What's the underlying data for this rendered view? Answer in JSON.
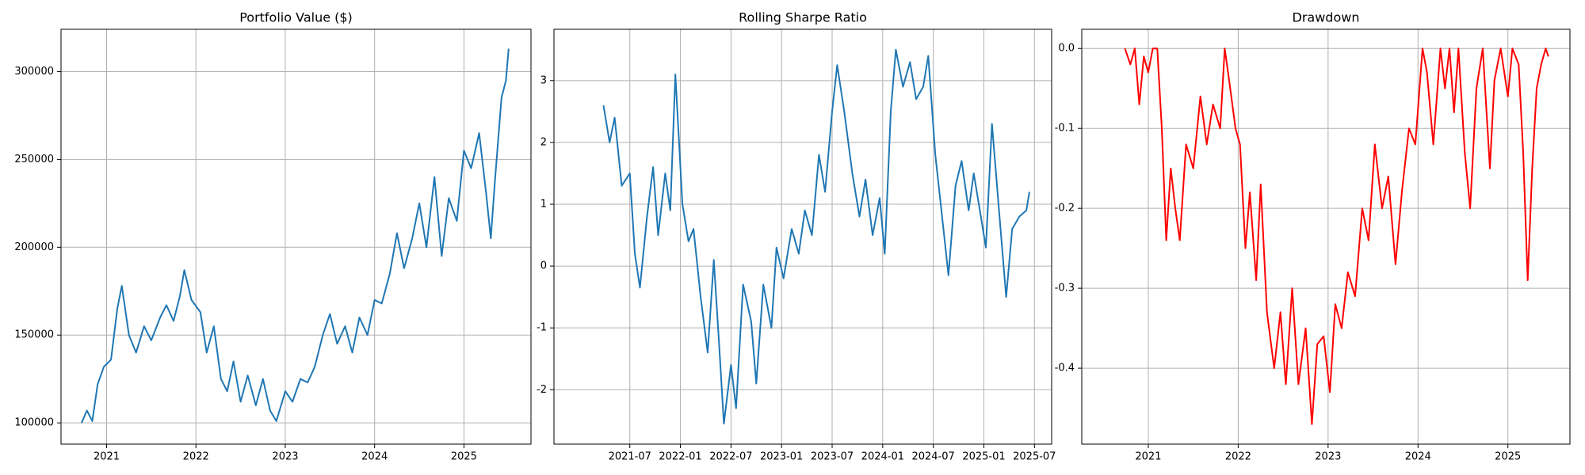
{
  "chart_data": [
    {
      "type": "line",
      "title": "Portfolio Value ($)",
      "color": "#1f77b4",
      "grid": true,
      "x": [
        2020.72,
        2020.78,
        2020.84,
        2020.9,
        2020.97,
        2021.05,
        2021.12,
        2021.17,
        2021.25,
        2021.33,
        2021.42,
        2021.5,
        2021.6,
        2021.67,
        2021.75,
        2021.82,
        2021.87,
        2021.95,
        2022.05,
        2022.12,
        2022.2,
        2022.28,
        2022.35,
        2022.42,
        2022.5,
        2022.58,
        2022.67,
        2022.75,
        2022.83,
        2022.9,
        2023.0,
        2023.08,
        2023.17,
        2023.25,
        2023.33,
        2023.42,
        2023.5,
        2023.58,
        2023.67,
        2023.75,
        2023.83,
        2023.92,
        2024.0,
        2024.08,
        2024.17,
        2024.25,
        2024.33,
        2024.42,
        2024.5,
        2024.58,
        2024.67,
        2024.75,
        2024.83,
        2024.92,
        2025.0,
        2025.08,
        2025.17,
        2025.25,
        2025.3,
        2025.35,
        2025.42,
        2025.47,
        2025.5
      ],
      "values": [
        100000,
        107000,
        101000,
        122000,
        132000,
        136000,
        165000,
        178000,
        150000,
        140000,
        155000,
        147000,
        160000,
        167000,
        158000,
        172000,
        187000,
        170000,
        163000,
        140000,
        155000,
        125000,
        118000,
        135000,
        112000,
        127000,
        110000,
        125000,
        107000,
        101000,
        118000,
        112000,
        125000,
        123000,
        132000,
        150000,
        162000,
        145000,
        155000,
        140000,
        160000,
        150000,
        170000,
        168000,
        185000,
        208000,
        188000,
        205000,
        225000,
        200000,
        240000,
        195000,
        228000,
        215000,
        255000,
        245000,
        265000,
        230000,
        205000,
        240000,
        285000,
        295000,
        313000
      ],
      "xlim": [
        2020.49,
        2025.75
      ],
      "xticks": [
        2021,
        2022,
        2023,
        2024,
        2025
      ],
      "ylim": [
        87900,
        324100
      ],
      "yticks": [
        100000,
        150000,
        200000,
        250000,
        300000
      ]
    },
    {
      "type": "line",
      "title": "Rolling Sharpe Ratio",
      "color": "#1f77b4",
      "grid": true,
      "x": [
        2021.24,
        2021.3,
        2021.35,
        2021.42,
        2021.5,
        2021.55,
        2021.6,
        2021.67,
        2021.73,
        2021.78,
        2021.85,
        2021.9,
        2021.95,
        2022.02,
        2022.08,
        2022.13,
        2022.2,
        2022.27,
        2022.33,
        2022.38,
        2022.43,
        2022.5,
        2022.55,
        2022.62,
        2022.7,
        2022.75,
        2022.82,
        2022.9,
        2022.95,
        2023.02,
        2023.1,
        2023.17,
        2023.23,
        2023.3,
        2023.37,
        2023.43,
        2023.5,
        2023.55,
        2023.62,
        2023.7,
        2023.77,
        2023.83,
        2023.9,
        2023.97,
        2024.02,
        2024.08,
        2024.13,
        2024.2,
        2024.27,
        2024.33,
        2024.4,
        2024.45,
        2024.52,
        2024.58,
        2024.65,
        2024.72,
        2024.78,
        2024.85,
        2024.9,
        2024.97,
        2025.02,
        2025.08,
        2025.15,
        2025.22,
        2025.28,
        2025.35,
        2025.42,
        2025.45
      ],
      "values": [
        2.6,
        2.0,
        2.4,
        1.3,
        1.5,
        0.2,
        -0.35,
        0.8,
        1.6,
        0.5,
        1.5,
        0.9,
        3.1,
        1.0,
        0.4,
        0.6,
        -0.5,
        -1.4,
        0.1,
        -1.2,
        -2.55,
        -1.6,
        -2.3,
        -0.3,
        -0.9,
        -1.9,
        -0.3,
        -1.0,
        0.3,
        -0.2,
        0.6,
        0.2,
        0.9,
        0.5,
        1.8,
        1.2,
        2.5,
        3.25,
        2.5,
        1.5,
        0.8,
        1.4,
        0.5,
        1.1,
        0.2,
        2.5,
        3.5,
        2.9,
        3.3,
        2.7,
        2.9,
        3.4,
        1.8,
        0.9,
        -0.15,
        1.3,
        1.7,
        0.9,
        1.5,
        0.8,
        0.3,
        2.3,
        0.9,
        -0.5,
        0.6,
        0.8,
        0.9,
        1.2
      ],
      "xlim": [
        2020.75,
        2025.67
      ],
      "xticks": [
        {
          "value": 2021.5,
          "label": "2021-07"
        },
        {
          "value": 2022.0,
          "label": "2022-01"
        },
        {
          "value": 2022.5,
          "label": "2022-07"
        },
        {
          "value": 2023.0,
          "label": "2023-01"
        },
        {
          "value": 2023.5,
          "label": "2023-07"
        },
        {
          "value": 2024.0,
          "label": "2024-01"
        },
        {
          "value": 2024.5,
          "label": "2024-07"
        },
        {
          "value": 2025.0,
          "label": "2025-01"
        },
        {
          "value": 2025.5,
          "label": "2025-07"
        }
      ],
      "ylim": [
        -2.88,
        3.83
      ],
      "yticks": [
        -2,
        -1,
        0,
        1,
        2,
        3
      ]
    },
    {
      "type": "line",
      "title": "Drawdown",
      "color": "#ff0000",
      "grid": true,
      "x": [
        2020.74,
        2020.8,
        2020.85,
        2020.9,
        2020.95,
        2021.0,
        2021.05,
        2021.1,
        2021.15,
        2021.2,
        2021.25,
        2021.3,
        2021.35,
        2021.42,
        2021.5,
        2021.58,
        2021.65,
        2021.72,
        2021.8,
        2021.85,
        2021.9,
        2021.97,
        2022.02,
        2022.08,
        2022.13,
        2022.2,
        2022.25,
        2022.32,
        2022.4,
        2022.47,
        2022.53,
        2022.6,
        2022.67,
        2022.75,
        2022.82,
        2022.88,
        2022.95,
        2023.02,
        2023.08,
        2023.15,
        2023.22,
        2023.3,
        2023.38,
        2023.45,
        2023.52,
        2023.6,
        2023.67,
        2023.75,
        2023.82,
        2023.9,
        2023.97,
        2024.05,
        2024.1,
        2024.17,
        2024.25,
        2024.3,
        2024.35,
        2024.4,
        2024.45,
        2024.52,
        2024.58,
        2024.65,
        2024.72,
        2024.8,
        2024.85,
        2024.92,
        2025.0,
        2025.05,
        2025.12,
        2025.17,
        2025.22,
        2025.27,
        2025.32,
        2025.37,
        2025.42,
        2025.45
      ],
      "values": [
        0,
        -0.02,
        0,
        -0.07,
        -0.01,
        -0.03,
        0,
        0,
        -0.1,
        -0.24,
        -0.15,
        -0.2,
        -0.24,
        -0.12,
        -0.15,
        -0.06,
        -0.12,
        -0.07,
        -0.1,
        0,
        -0.04,
        -0.1,
        -0.12,
        -0.25,
        -0.18,
        -0.29,
        -0.17,
        -0.33,
        -0.4,
        -0.33,
        -0.42,
        -0.3,
        -0.42,
        -0.35,
        -0.47,
        -0.37,
        -0.36,
        -0.43,
        -0.32,
        -0.35,
        -0.28,
        -0.31,
        -0.2,
        -0.24,
        -0.12,
        -0.2,
        -0.16,
        -0.27,
        -0.18,
        -0.1,
        -0.12,
        0,
        -0.03,
        -0.12,
        0,
        -0.05,
        0,
        -0.08,
        0,
        -0.13,
        -0.2,
        -0.05,
        0,
        -0.15,
        -0.04,
        0,
        -0.06,
        0,
        -0.02,
        -0.13,
        -0.29,
        -0.15,
        -0.05,
        -0.02,
        0,
        -0.01
      ],
      "xlim": [
        2020.26,
        2025.69
      ],
      "xticks": [
        2021,
        2022,
        2023,
        2024,
        2025
      ],
      "ylim": [
        -0.495,
        0.024
      ],
      "yticks": [
        {
          "value": 0,
          "label": "0.0"
        },
        -0.1,
        -0.2,
        -0.3,
        -0.4
      ]
    }
  ]
}
